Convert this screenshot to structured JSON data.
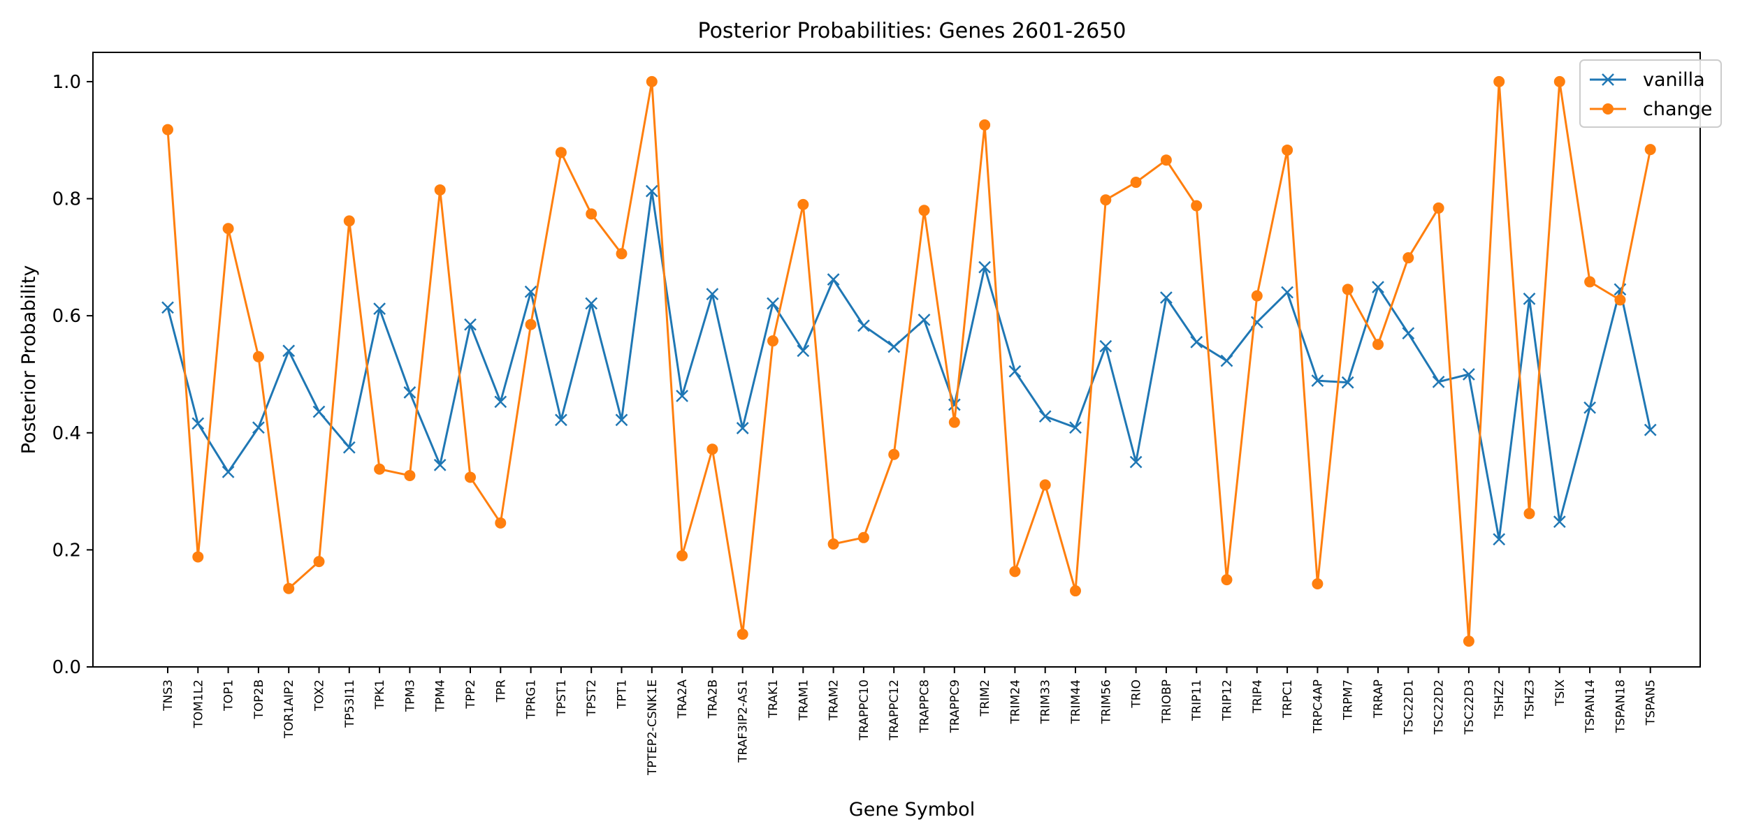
{
  "chart_data": {
    "type": "line",
    "title": "Posterior Probabilities: Genes 2601-2650",
    "xlabel": "Gene Symbol",
    "ylabel": "Posterior Probability",
    "ylim": [
      0.0,
      1.05
    ],
    "yticks": [
      "0.0",
      "0.2",
      "0.4",
      "0.6",
      "0.8",
      "1.0"
    ],
    "grid": false,
    "legend_position": "top-right",
    "categories": [
      "TNS3",
      "TOM1L2",
      "TOP1",
      "TOP2B",
      "TOR1AIP2",
      "TOX2",
      "TP53I11",
      "TPK1",
      "TPM3",
      "TPM4",
      "TPP2",
      "TPR",
      "TPRG1",
      "TPST1",
      "TPST2",
      "TPT1",
      "TPTEP2-CSNK1E",
      "TRA2A",
      "TRA2B",
      "TRAF3IP2-AS1",
      "TRAK1",
      "TRAM1",
      "TRAM2",
      "TRAPPC10",
      "TRAPPC12",
      "TRAPPC8",
      "TRAPPC9",
      "TRIM2",
      "TRIM24",
      "TRIM33",
      "TRIM44",
      "TRIM56",
      "TRIO",
      "TRIOBP",
      "TRIP11",
      "TRIP12",
      "TRIP4",
      "TRPC1",
      "TRPC4AP",
      "TRPM7",
      "TRRAP",
      "TSC22D1",
      "TSC22D2",
      "TSC22D3",
      "TSHZ2",
      "TSHZ3",
      "TSIX",
      "TSPAN14",
      "TSPAN18",
      "TSPAN5"
    ],
    "series": [
      {
        "name": "vanilla",
        "color": "#1f77b4",
        "marker": "x",
        "values": [
          0.614,
          0.416,
          0.333,
          0.409,
          0.54,
          0.436,
          0.375,
          0.612,
          0.469,
          0.345,
          0.585,
          0.453,
          0.641,
          0.422,
          0.621,
          0.422,
          0.813,
          0.463,
          0.637,
          0.408,
          0.621,
          0.54,
          0.662,
          0.583,
          0.547,
          0.593,
          0.448,
          0.683,
          0.505,
          0.428,
          0.409,
          0.548,
          0.35,
          0.631,
          0.555,
          0.523,
          0.589,
          0.64,
          0.489,
          0.486,
          0.649,
          0.57,
          0.487,
          0.5,
          0.218,
          0.629,
          0.248,
          0.443,
          0.645,
          0.405
        ]
      },
      {
        "name": "change",
        "color": "#ff7f0e",
        "marker": "o",
        "values": [
          0.918,
          0.188,
          0.749,
          0.53,
          0.134,
          0.18,
          0.762,
          0.338,
          0.327,
          0.815,
          0.324,
          0.246,
          0.585,
          0.879,
          0.774,
          0.706,
          1.0,
          0.19,
          0.372,
          0.056,
          0.557,
          0.79,
          0.21,
          0.221,
          0.363,
          0.78,
          0.418,
          0.926,
          0.163,
          0.311,
          0.13,
          0.798,
          0.828,
          0.866,
          0.788,
          0.149,
          0.634,
          0.883,
          0.142,
          0.645,
          0.551,
          0.699,
          0.784,
          0.044,
          1.0,
          0.262,
          1.0,
          0.658,
          0.627,
          0.884
        ]
      }
    ]
  }
}
